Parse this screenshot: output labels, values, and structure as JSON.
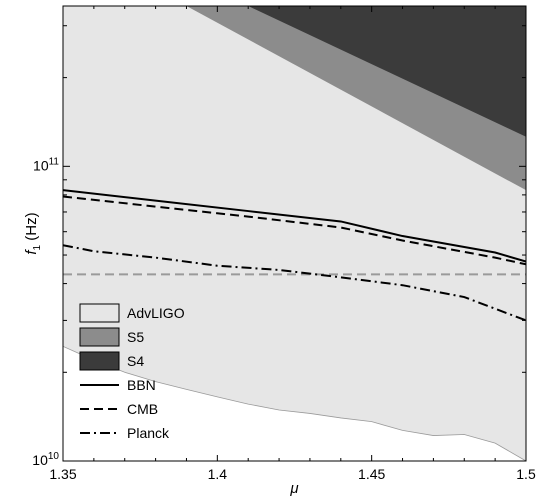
{
  "chart_data": {
    "type": "area",
    "xlabel": "μ",
    "ylabel": "f",
    "ylabel_subscript": "1",
    "ylabel_unit": " (Hz)",
    "xlim": [
      1.35,
      1.5
    ],
    "ylim": [
      10000000000.0,
      350000000000.0
    ],
    "yscale": "log",
    "x_ticks": [
      1.35,
      1.4,
      1.45,
      1.5
    ],
    "x_tick_labels": [
      "1.35",
      "1.4",
      "1.45",
      "1.5"
    ],
    "y_tick_labels": [
      {
        "value": 10000000000.0,
        "base": "10",
        "exp": "10"
      },
      {
        "value": 100000000000.0,
        "base": "10",
        "exp": "11"
      }
    ],
    "colors": {
      "advligo": "#e6e6e6",
      "s5": "#8c8c8c",
      "s4": "#3b3b3b",
      "advligo_edge": "#9a9a9a",
      "reference_line": "#9a9a9a"
    },
    "regions": [
      {
        "name": "AdvLIGO",
        "lower_boundary": {
          "x": [
            1.35,
            1.36,
            1.37,
            1.38,
            1.39,
            1.4,
            1.41,
            1.42,
            1.43,
            1.44,
            1.45,
            1.46,
            1.47,
            1.48,
            1.49,
            1.5
          ],
          "y": [
            24500000000.0,
            22000000000.0,
            20000000000.0,
            18600000000.0,
            17500000000.0,
            16500000000.0,
            15600000000.0,
            14900000000.0,
            14500000000.0,
            14000000000.0,
            13600000000.0,
            12700000000.0,
            12200000000.0,
            12300000000.0,
            11500000000.0,
            10000000000.0
          ]
        }
      },
      {
        "name": "S5",
        "boundary": {
          "x": [
            1.39,
            1.5
          ],
          "y": [
            350000000000.0,
            83000000000.0
          ]
        }
      },
      {
        "name": "S4",
        "boundary": {
          "x": [
            1.41,
            1.5
          ],
          "y": [
            350000000000.0,
            126000000000.0
          ]
        }
      }
    ],
    "series": [
      {
        "name": "BBN",
        "style": "solid",
        "x": [
          1.35,
          1.38,
          1.41,
          1.44,
          1.46,
          1.49,
          1.5
        ],
        "y": [
          83000000000.0,
          76500000000.0,
          70500000000.0,
          65000000000.0,
          58000000000.0,
          51000000000.0,
          47500000000.0
        ]
      },
      {
        "name": "CMB",
        "style": "dashed",
        "x": [
          1.35,
          1.38,
          1.41,
          1.44,
          1.46,
          1.49,
          1.5
        ],
        "y": [
          79000000000.0,
          73000000000.0,
          67500000000.0,
          62000000000.0,
          56000000000.0,
          49000000000.0,
          46500000000.0
        ]
      },
      {
        "name": "Planck",
        "style": "dashdot",
        "x": [
          1.35,
          1.36,
          1.38,
          1.4,
          1.42,
          1.44,
          1.46,
          1.48,
          1.5
        ],
        "y": [
          54000000000.0,
          51500000000.0,
          49000000000.0,
          46000000000.0,
          44500000000.0,
          42000000000.0,
          39500000000.0,
          36000000000.0,
          30000000000.0
        ]
      }
    ],
    "reference_line": {
      "y": 43000000000.0,
      "style": "dashed"
    },
    "legend": {
      "placement": "bottom-left",
      "entries": [
        {
          "label": "AdvLIGO",
          "kind": "patch",
          "color": "#e6e6e6"
        },
        {
          "label": "S5",
          "kind": "patch",
          "color": "#8c8c8c"
        },
        {
          "label": "S4",
          "kind": "patch",
          "color": "#3b3b3b"
        },
        {
          "label": "BBN",
          "kind": "line",
          "style": "solid"
        },
        {
          "label": "CMB",
          "kind": "line",
          "style": "dashed"
        },
        {
          "label": "Planck",
          "kind": "line",
          "style": "dashdot"
        }
      ]
    },
    "grid": false
  }
}
